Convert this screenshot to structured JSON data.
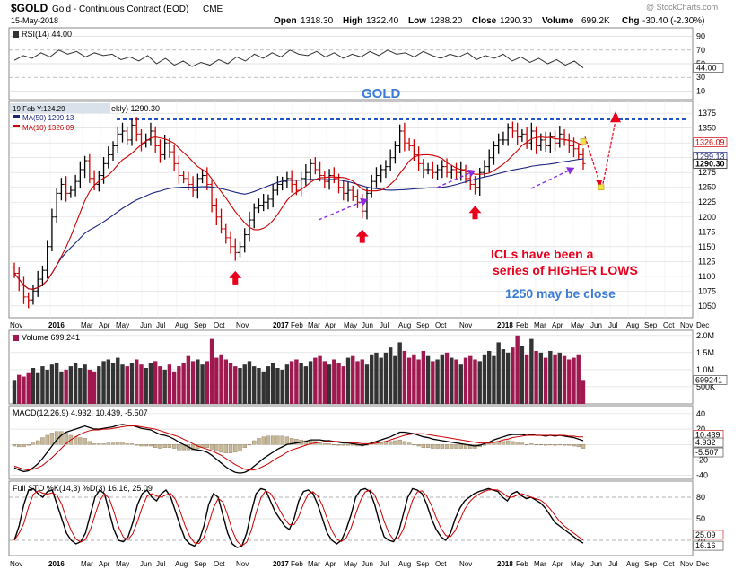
{
  "header": {
    "symbol": "$GOLD",
    "name": "Gold - Continuous Contract (EOD)",
    "exchange": "CME",
    "date": "15-May-2018",
    "watermark": "@ StockCharts.com",
    "open_label": "Open",
    "open": "1318.30",
    "high_label": "High",
    "high": "1322.40",
    "low_label": "Low",
    "low": "1288.20",
    "close_label": "Close",
    "close": "1290.30",
    "volume_label": "Volume",
    "volume": "699.2K",
    "chg_label": "Chg",
    "chg": "-30.40 (-2.30%)"
  },
  "colors": {
    "bar_up": "#000000",
    "bar_down": "#cc0000",
    "ma50": "#1a237e",
    "ma10": "#cc0000",
    "annotation_red": "#e8001c",
    "annotation_blue": "#3a7bd5",
    "arrow_purple": "#8a2be2",
    "resistance": "#2255cc",
    "vol_up": "#333333",
    "vol_down": "#a01850",
    "macd_hist": "#c8b89a",
    "grid": "#d8d8d8"
  },
  "chart_data": [
    {
      "panel": "rsi",
      "type": "line",
      "legend": "RSI(14) 44.00",
      "current_label": "44.00",
      "ylim": [
        0,
        100
      ],
      "yticks": [
        "90",
        "70",
        "50",
        "30",
        "10"
      ],
      "values": [
        55,
        62,
        58,
        66,
        60,
        70,
        64,
        68,
        60,
        66,
        62,
        64,
        56,
        60,
        54,
        62,
        50,
        58,
        48,
        54,
        46,
        52,
        48,
        56,
        50,
        60,
        54,
        64,
        58,
        66,
        60,
        70,
        64,
        62,
        68,
        60,
        66,
        58,
        64,
        60,
        68,
        62,
        70,
        64,
        66,
        60,
        68,
        62,
        58,
        64,
        60,
        66,
        56,
        62,
        58,
        64,
        54,
        60,
        52,
        58,
        50,
        56,
        48,
        54,
        44
      ]
    },
    {
      "panel": "price",
      "type": "ohlc",
      "title": "GOLD",
      "legend_ma50": "MA(50) 1299.13",
      "legend_ma10": "MA(10) 1326.09",
      "tooltip": "19 Feb Y:124.29",
      "tooltip_tail": "ekly) 1290.30",
      "ylim": [
        1030,
        1395
      ],
      "yticks": [
        "1375",
        "1350",
        "1325",
        "1300",
        "1275",
        "1250",
        "1225",
        "1200",
        "1175",
        "1150",
        "1125",
        "1100",
        "1075",
        "1050"
      ],
      "ma50_label": "1299.13",
      "ma10_label": "1326.09",
      "close_label": "1290.30",
      "resistance_level": 1365,
      "projection": {
        "low_target": 1250,
        "high_target": 1375
      },
      "close": [
        1105,
        1085,
        1065,
        1060,
        1075,
        1095,
        1110,
        1150,
        1200,
        1240,
        1255,
        1240,
        1245,
        1260,
        1280,
        1295,
        1265,
        1255,
        1270,
        1290,
        1305,
        1320,
        1340,
        1345,
        1330,
        1355,
        1340,
        1325,
        1330,
        1345,
        1320,
        1305,
        1325,
        1310,
        1290,
        1270,
        1265,
        1255,
        1245,
        1265,
        1270,
        1255,
        1220,
        1200,
        1180,
        1165,
        1150,
        1140,
        1150,
        1170,
        1195,
        1215,
        1220,
        1225,
        1230,
        1245,
        1255,
        1260,
        1265,
        1255,
        1245,
        1265,
        1275,
        1290,
        1280,
        1270,
        1260,
        1270,
        1265,
        1250,
        1240,
        1245,
        1235,
        1225,
        1210,
        1240,
        1260,
        1270,
        1280,
        1285,
        1300,
        1320,
        1345,
        1325,
        1320,
        1305,
        1290,
        1280,
        1280,
        1275,
        1280,
        1285,
        1275,
        1280,
        1275,
        1280,
        1265,
        1255,
        1250,
        1275,
        1285,
        1300,
        1320,
        1330,
        1330,
        1350,
        1345,
        1335,
        1340,
        1325,
        1345,
        1320,
        1330,
        1320,
        1335,
        1325,
        1340,
        1330,
        1320,
        1315,
        1305,
        1290
      ],
      "x_labels": [
        "Nov",
        "2016",
        "Mar",
        "Apr",
        "May",
        "Jun",
        "Jul",
        "Aug",
        "Sep",
        "Oct",
        "Nov",
        "2017",
        "Feb",
        "Mar",
        "Apr",
        "May",
        "Jun",
        "Jul",
        "Aug",
        "Sep",
        "Oct",
        "Nov",
        "2018",
        "Feb",
        "Mar",
        "Apr",
        "May",
        "Jun",
        "Jul",
        "Aug",
        "Sep",
        "Oct",
        "Nov",
        "Dec"
      ],
      "annotations": {
        "icl_line1": "ICLs have been a",
        "icl_line2": "series of HIGHER LOWS",
        "target": "1250 may be close"
      }
    },
    {
      "panel": "volume",
      "type": "bar",
      "legend": "Volume 699,241",
      "current_label": "699241",
      "yticks": [
        "2.0M",
        "1.5M",
        "1.0M",
        "500K"
      ],
      "ylim": [
        0,
        2100000
      ],
      "values": [
        700,
        850,
        800,
        900,
        1050,
        900,
        1100,
        1000,
        1150,
        1200,
        950,
        1000,
        1100,
        1200,
        1050,
        1150,
        1000,
        950,
        1100,
        1250,
        1300,
        1200,
        1350,
        1150,
        1100,
        1200,
        1300,
        1150,
        1050,
        1200,
        1250,
        1100,
        1000,
        1150,
        950,
        1100,
        1200,
        1400,
        1250,
        1300,
        1150,
        1250,
        1900,
        1350,
        1450,
        1300,
        1200,
        1100,
        1050,
        1150,
        1250,
        1100,
        1050,
        950,
        1100,
        1200,
        1050,
        1000,
        1150,
        1250,
        1300,
        1200,
        1100,
        1250,
        1350,
        1400,
        1250,
        1150,
        1300,
        1200,
        1100,
        1350,
        1400,
        1250,
        1300,
        1150,
        1450,
        1500,
        1350,
        1500,
        1650,
        1400,
        1800,
        1550,
        1350,
        1450,
        1300,
        1550,
        1400,
        1250,
        1300,
        1450,
        1500,
        1350,
        1300,
        1150,
        1350,
        1400,
        1300,
        1250,
        1450,
        1550,
        1400,
        1800,
        1600,
        1500,
        1650,
        2000,
        1700,
        1450,
        1900,
        1550,
        1500,
        1350,
        1550,
        1450,
        1500,
        1400,
        1300,
        1350,
        1450,
        700
      ]
    },
    {
      "panel": "macd",
      "type": "line",
      "legend": "MACD(12,26,9) 4.932, 10.439, -5.507",
      "labels": [
        "10.439",
        "4.932",
        "-5.507"
      ],
      "yticks": [
        "40",
        "20",
        "0",
        "-20",
        "-40"
      ],
      "ylim": [
        -45,
        48
      ],
      "macd": [
        -30,
        -33,
        -35,
        -34,
        -30,
        -25,
        -18,
        -10,
        -2,
        6,
        12,
        16,
        18,
        20,
        22,
        24,
        22,
        20,
        20,
        21,
        22,
        23,
        25,
        26,
        25,
        25,
        23,
        21,
        20,
        19,
        16,
        13,
        12,
        10,
        7,
        3,
        0,
        -3,
        -6,
        -7,
        -8,
        -10,
        -14,
        -19,
        -24,
        -29,
        -33,
        -36,
        -37,
        -36,
        -33,
        -28,
        -23,
        -18,
        -14,
        -10,
        -6,
        -3,
        0,
        1,
        2,
        3,
        4,
        6,
        6,
        6,
        5,
        5,
        4,
        3,
        2,
        2,
        1,
        0,
        -1,
        0,
        2,
        4,
        6,
        8,
        10,
        13,
        16,
        16,
        15,
        14,
        12,
        10,
        9,
        7,
        6,
        5,
        4,
        3,
        2,
        1,
        0,
        -1,
        -2,
        -1,
        1,
        3,
        6,
        8,
        10,
        12,
        13,
        13,
        13,
        12,
        13,
        12,
        12,
        11,
        12,
        11,
        12,
        11,
        10,
        9,
        7,
        5
      ],
      "signal": [
        -28,
        -30,
        -32,
        -33,
        -32,
        -30,
        -27,
        -22,
        -17,
        -11,
        -5,
        1,
        6,
        10,
        13,
        16,
        18,
        19,
        19,
        20,
        20,
        21,
        22,
        23,
        24,
        24,
        24,
        23,
        22,
        21,
        20,
        18,
        16,
        14,
        12,
        10,
        7,
        4,
        1,
        -2,
        -4,
        -6,
        -8,
        -11,
        -14,
        -18,
        -22,
        -26,
        -29,
        -32,
        -33,
        -33,
        -31,
        -28,
        -25,
        -21,
        -17,
        -14,
        -10,
        -7,
        -5,
        -3,
        -1,
        1,
        2,
        3,
        4,
        4,
        4,
        4,
        3,
        3,
        2,
        2,
        1,
        1,
        1,
        2,
        3,
        4,
        6,
        8,
        10,
        12,
        13,
        14,
        14,
        14,
        13,
        12,
        11,
        10,
        9,
        8,
        7,
        6,
        5,
        4,
        3,
        2,
        2,
        2,
        3,
        4,
        6,
        7,
        9,
        10,
        11,
        12,
        12,
        12,
        12,
        12,
        12,
        12,
        12,
        12,
        11,
        11,
        10,
        10
      ]
    },
    {
      "panel": "stochastic",
      "type": "line",
      "legend": "Full STO %K(14,3) %D(3) 16.16, 25.09",
      "labels": [
        "25.09",
        "16.16"
      ],
      "yticks": [
        "80",
        "50",
        "20"
      ],
      "ylim": [
        0,
        100
      ],
      "k": [
        20,
        40,
        70,
        90,
        92,
        85,
        80,
        88,
        90,
        70,
        50,
        30,
        20,
        15,
        18,
        30,
        55,
        80,
        90,
        85,
        60,
        35,
        20,
        18,
        25,
        45,
        70,
        85,
        90,
        80,
        75,
        85,
        90,
        80,
        60,
        40,
        22,
        15,
        12,
        20,
        40,
        70,
        85,
        80,
        55,
        30,
        15,
        10,
        12,
        30,
        60,
        85,
        92,
        90,
        75,
        60,
        50,
        40,
        35,
        50,
        75,
        88,
        90,
        85,
        70,
        50,
        30,
        20,
        15,
        20,
        35,
        55,
        80,
        90,
        92,
        88,
        70,
        45,
        25,
        20,
        18,
        30,
        55,
        80,
        92,
        90,
        85,
        70,
        50,
        35,
        25,
        20,
        30,
        50,
        65,
        75,
        80,
        85,
        88,
        90,
        92,
        90,
        88,
        80,
        75,
        85,
        88,
        82,
        78,
        80,
        76,
        72,
        65,
        55,
        45,
        40,
        35,
        30,
        25,
        20,
        16
      ]
    }
  ]
}
